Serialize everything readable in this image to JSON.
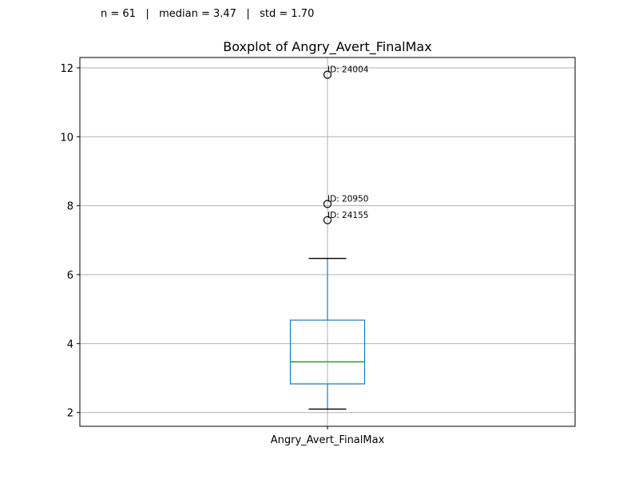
{
  "stats_line": "n = 61   |   median = 3.47   |   std = 1.70",
  "chart_data": {
    "type": "box",
    "title": "Boxplot of Angry_Avert_FinalMax",
    "categories": [
      "Angry_Avert_FinalMax"
    ],
    "xlabel": "",
    "ylabel": "",
    "ylim": [
      1.6,
      12.3
    ],
    "yticks": [
      2,
      4,
      6,
      8,
      10,
      12
    ],
    "grid": true,
    "box": {
      "whisker_low": 2.1,
      "q1": 2.83,
      "median": 3.47,
      "q3": 4.68,
      "whisker_high": 6.47
    },
    "outliers": [
      {
        "value": 11.8,
        "label": "ID: 24004"
      },
      {
        "value": 8.05,
        "label": "ID: 20950"
      },
      {
        "value": 7.58,
        "label": "ID: 24155"
      }
    ],
    "colors": {
      "box": "#1f77b4",
      "median": "#2ca02c",
      "whisker_cap": "#000000",
      "grid": "#b0b0b0"
    }
  }
}
